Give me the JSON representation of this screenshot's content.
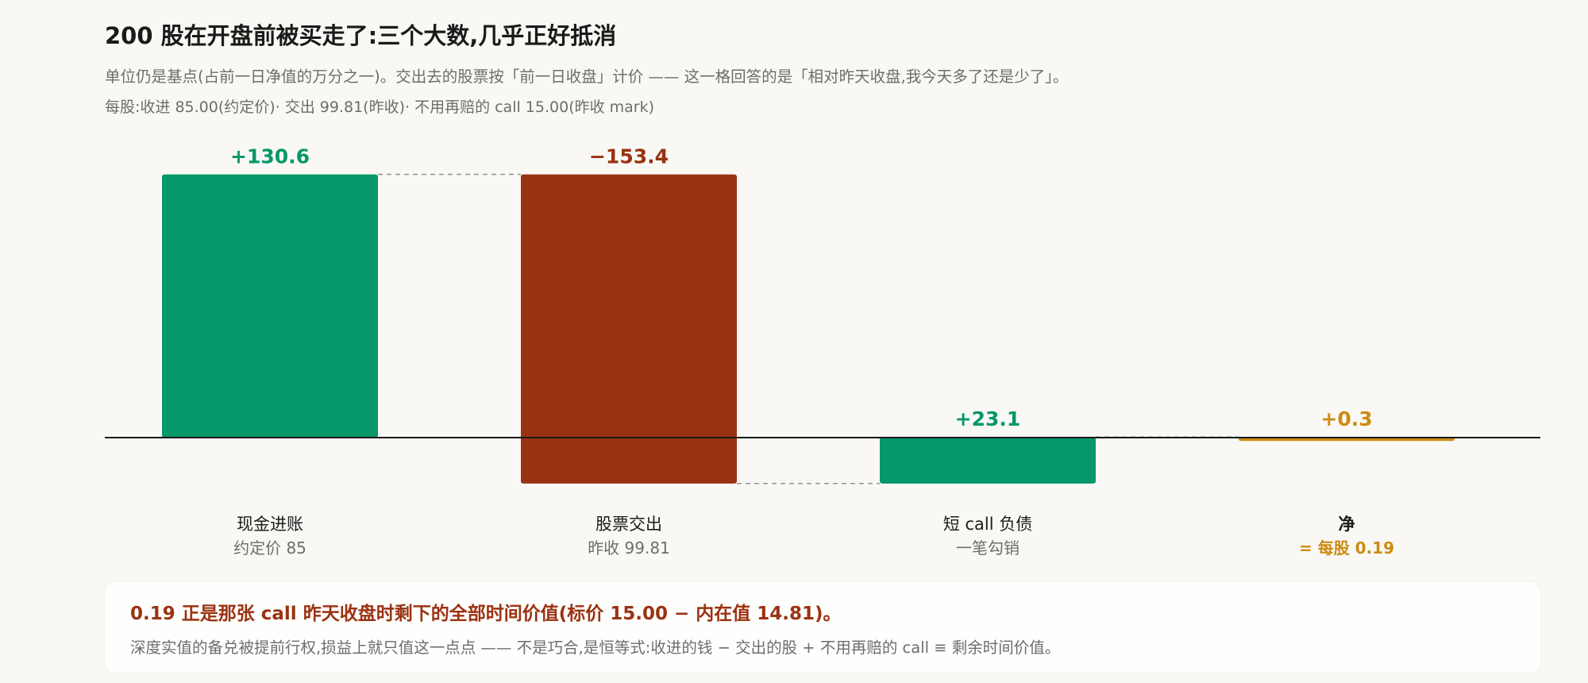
{
  "header": {
    "title": "200 股在开盘前被买走了:三个大数,几乎正好抵消",
    "subtitle": "单位仍是基点(占前一日净值的万分之一)。交出去的股票按「前一日收盘」计价 —— 这一格回答的是「相对昨天收盘,我今天多了还是少了」。",
    "meta": "每股:收进 85.00(约定价)· 交出 99.81(昨收)· 不用再赔的 call 15.00(昨收 mark)"
  },
  "colors": {
    "positive": "#06976a",
    "negative": "#993212",
    "net": "#cc8c13",
    "baseline": "#1a1a1a",
    "connector": "#9a9a9a"
  },
  "chart_data": {
    "type": "waterfall",
    "unit": "基点",
    "categories": [
      "现金进账",
      "股票交出",
      "短 call 负债",
      "净"
    ],
    "sublabels": [
      "约定价 85",
      "昨收 99.81",
      "一笔勾销",
      "= 每股 0.19"
    ],
    "values": [
      130.6,
      -153.4,
      23.1,
      0.3
    ],
    "value_labels": [
      "+130.6",
      "−153.4",
      "+23.1",
      "+0.3"
    ],
    "kinds": [
      "delta",
      "delta",
      "delta",
      "total"
    ],
    "ylim": [
      -30,
      150
    ]
  },
  "callout": {
    "headline": "0.19 正是那张 call 昨天收盘时剩下的全部时间价值(标价 15.00 − 内在值 14.81)。",
    "note": "深度实值的备兑被提前行权,损益上就只值这一点点 —— 不是巧合,是恒等式:收进的钱 − 交出的股 + 不用再赔的 call ≡ 剩余时间价值。"
  }
}
